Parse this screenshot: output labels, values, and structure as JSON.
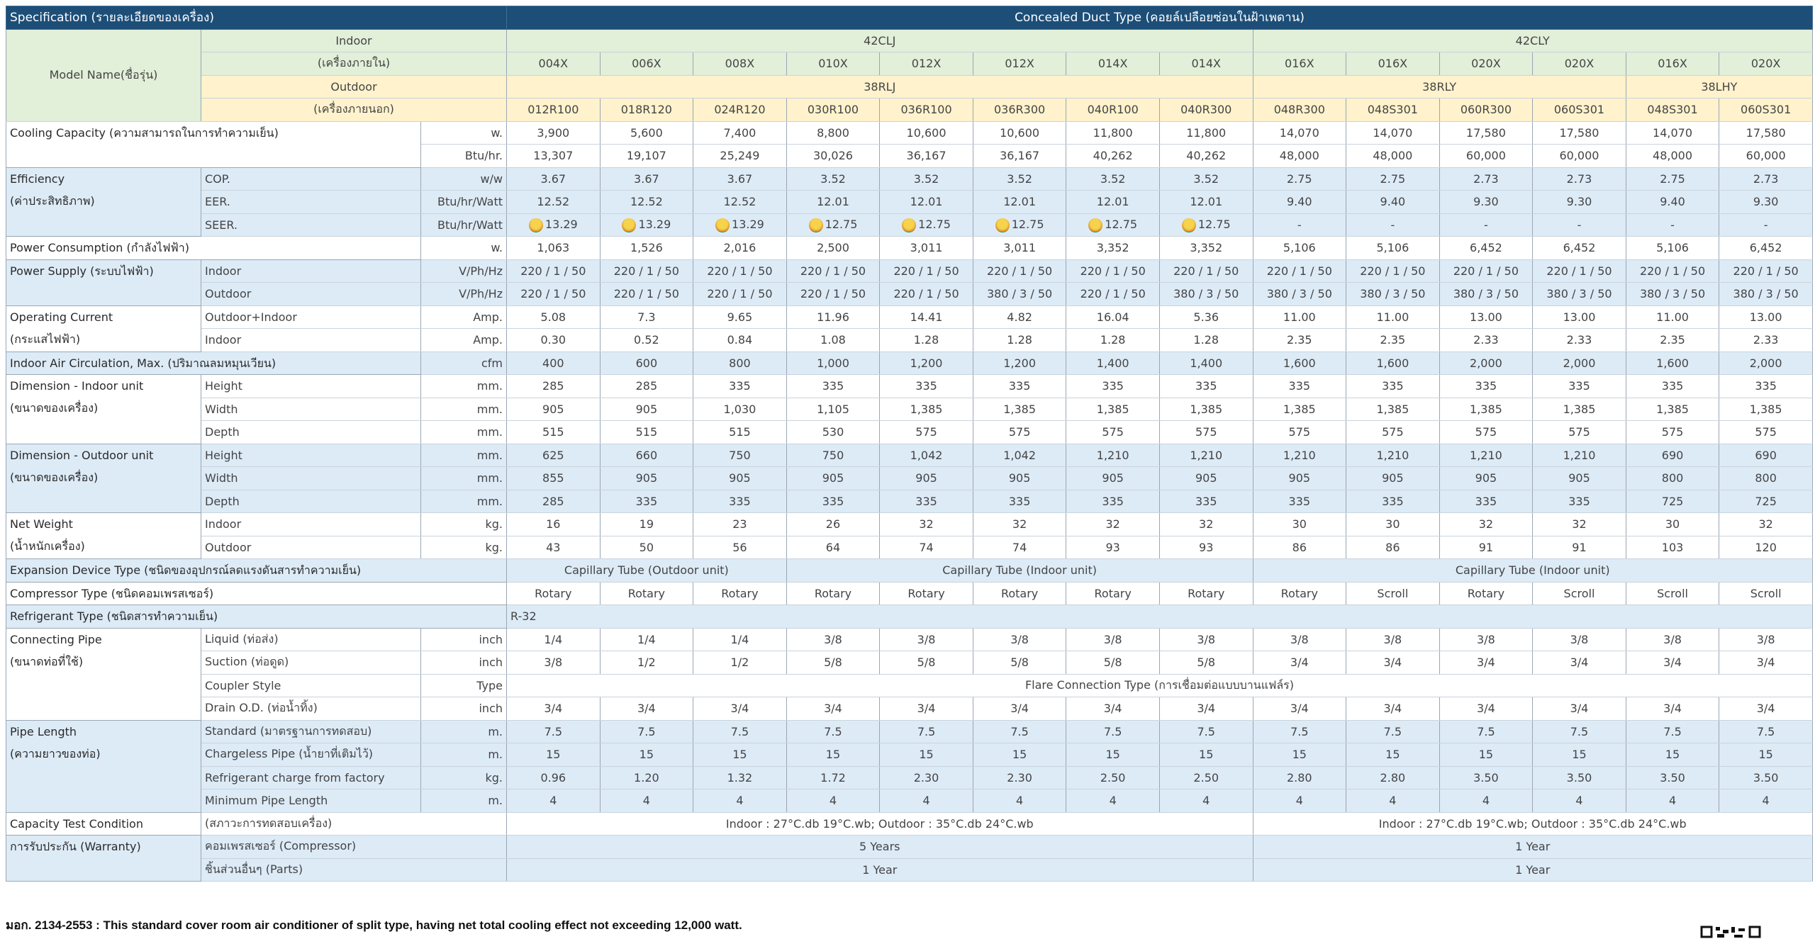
{
  "header": {
    "title": "Specification (รายละเอียดของเครื่อง)",
    "type_title": "Concealed Duct Type (คอยล์เปลือยซ่อนในฝ้าเพดาน)",
    "model_name": "Model Name(ชื่อรุ่น)",
    "indoor": "Indoor",
    "indoor_th": "(เครื่องภายใน)",
    "outdoor": "Outdoor",
    "outdoor_th": "(เครื่องภายนอก)",
    "indoor_series": [
      "42CLJ",
      "42CLY"
    ],
    "indoor_models": [
      "004X",
      "006X",
      "008X",
      "010X",
      "012X",
      "012X",
      "014X",
      "014X",
      "016X",
      "016X",
      "020X",
      "020X",
      "016X",
      "020X"
    ],
    "outdoor_series": [
      "38RLJ",
      "38RLY",
      "38LHY"
    ],
    "outdoor_models": [
      "012R100",
      "018R120",
      "024R120",
      "030R100",
      "036R100",
      "036R300",
      "040R100",
      "040R300",
      "048R300",
      "048S301",
      "060R300",
      "060S301",
      "048S301",
      "060S301"
    ]
  },
  "specs": [
    {
      "group": [
        "Cooling Capacity (ความสามารถในการทำความเย็น)"
      ],
      "rows": [
        {
          "unit": "w.",
          "values": [
            "3,900",
            "5,600",
            "7,400",
            "8,800",
            "10,600",
            "10,600",
            "11,800",
            "11,800",
            "14,070",
            "14,070",
            "17,580",
            "17,580",
            "14,070",
            "17,580"
          ]
        },
        {
          "unit": "Btu/hr.",
          "values": [
            "13,307",
            "19,107",
            "25,249",
            "30,026",
            "36,167",
            "36,167",
            "40,262",
            "40,262",
            "48,000",
            "48,000",
            "60,000",
            "60,000",
            "48,000",
            "60,000"
          ]
        }
      ]
    },
    {
      "group": [
        "Efficiency",
        "(ค่าประสิทธิภาพ)"
      ],
      "rows": [
        {
          "label": "COP.",
          "unit": "w/w",
          "values": [
            "3.67",
            "3.67",
            "3.67",
            "3.52",
            "3.52",
            "3.52",
            "3.52",
            "3.52",
            "2.75",
            "2.75",
            "2.73",
            "2.73",
            "2.75",
            "2.73"
          ]
        },
        {
          "label": "EER.",
          "unit": "Btu/hr/Watt",
          "values": [
            "12.52",
            "12.52",
            "12.52",
            "12.01",
            "12.01",
            "12.01",
            "12.01",
            "12.01",
            "9.40",
            "9.40",
            "9.30",
            "9.30",
            "9.40",
            "9.30"
          ]
        },
        {
          "label": "SEER.",
          "unit": "Btu/hr/Watt",
          "values": [
            "13.29",
            "13.29",
            "13.29",
            "12.75",
            "12.75",
            "12.75",
            "12.75",
            "12.75",
            "-",
            "-",
            "-",
            "-",
            "-",
            "-"
          ]
        }
      ]
    },
    {
      "group": [
        "Power Consumption (กำลังไฟฟ้า)"
      ],
      "rows": [
        {
          "unit": "w.",
          "values": [
            "1,063",
            "1,526",
            "2,016",
            "2,500",
            "3,011",
            "3,011",
            "3,352",
            "3,352",
            "5,106",
            "5,106",
            "6,452",
            "6,452",
            "5,106",
            "6,452"
          ]
        }
      ]
    },
    {
      "group": [
        "Power Supply (ระบบไฟฟ้า)"
      ],
      "rows": [
        {
          "label": "Indoor",
          "unit": "V/Ph/Hz",
          "values": [
            "220 / 1 / 50",
            "220 / 1 / 50",
            "220 / 1 / 50",
            "220 / 1 / 50",
            "220 / 1 / 50",
            "220 / 1 / 50",
            "220 / 1 / 50",
            "220 / 1 / 50",
            "220 / 1 / 50",
            "220 / 1 / 50",
            "220 / 1 / 50",
            "220 / 1 / 50",
            "220 / 1 / 50",
            "220 / 1 / 50"
          ]
        },
        {
          "label": "Outdoor",
          "unit": "V/Ph/Hz",
          "values": [
            "220 / 1 / 50",
            "220 / 1 / 50",
            "220 / 1 / 50",
            "220 / 1 / 50",
            "220 / 1 / 50",
            "380  / 3 / 50",
            "220 / 1 / 50",
            "380  / 3 / 50",
            "380 / 3 / 50",
            "380 / 3 / 50",
            "380 / 3 / 50",
            "380 / 3 / 50",
            "380 / 3 / 50",
            "380 / 3 / 50"
          ]
        }
      ]
    },
    {
      "group": [
        "Operating Current",
        "(กระแสไฟฟ้า)"
      ],
      "rows": [
        {
          "label": "Outdoor+Indoor",
          "unit": "Amp.",
          "values": [
            "5.08",
            "7.3",
            "9.65",
            "11.96",
            "14.41",
            "4.82",
            "16.04",
            "5.36",
            "11.00",
            "11.00",
            "13.00",
            "13.00",
            "11.00",
            "13.00"
          ]
        },
        {
          "label": "Indoor",
          "unit": "Amp.",
          "values": [
            "0.30",
            "0.52",
            "0.84",
            "1.08",
            "1.28",
            "1.28",
            "1.28",
            "1.28",
            "2.35",
            "2.35",
            "2.33",
            "2.33",
            "2.35",
            "2.33"
          ]
        }
      ]
    },
    {
      "group": [
        "Indoor Air Circulation, Max. (ปริมาณลมหมุนเวียน)"
      ],
      "rows": [
        {
          "unit": "cfm",
          "values": [
            "400",
            "600",
            "800",
            "1,000",
            "1,200",
            "1,200",
            "1,400",
            "1,400",
            "1,600",
            "1,600",
            "2,000",
            "2,000",
            "1,600",
            "2,000"
          ]
        }
      ]
    },
    {
      "group": [
        "Dimension - Indoor unit",
        "(ขนาดของเครื่อง)"
      ],
      "rows": [
        {
          "label": "Height",
          "unit": "mm.",
          "values": [
            "285",
            "285",
            "335",
            "335",
            "335",
            "335",
            "335",
            "335",
            "335",
            "335",
            "335",
            "335",
            "335",
            "335"
          ]
        },
        {
          "label": "Width",
          "unit": "mm.",
          "values": [
            "905",
            "905",
            "1,030",
            "1,105",
            "1,385",
            "1,385",
            "1,385",
            "1,385",
            "1,385",
            "1,385",
            "1,385",
            "1,385",
            "1,385",
            "1,385"
          ]
        },
        {
          "label": "Depth",
          "unit": "mm.",
          "values": [
            "515",
            "515",
            "515",
            "530",
            "575",
            "575",
            "575",
            "575",
            "575",
            "575",
            "575",
            "575",
            "575",
            "575"
          ]
        }
      ]
    },
    {
      "group": [
        "Dimension - Outdoor unit",
        "(ขนาดของเครื่อง)"
      ],
      "rows": [
        {
          "label": "Height",
          "unit": "mm.",
          "values": [
            "625",
            "660",
            "750",
            "750",
            "1,042",
            "1,042",
            "1,210",
            "1,210",
            "1,210",
            "1,210",
            "1,210",
            "1,210",
            "690",
            "690"
          ]
        },
        {
          "label": "Width",
          "unit": "mm.",
          "values": [
            "855",
            "905",
            "905",
            "905",
            "905",
            "905",
            "905",
            "905",
            "905",
            "905",
            "905",
            "905",
            "800",
            "800"
          ]
        },
        {
          "label": "Depth",
          "unit": "mm.",
          "values": [
            "285",
            "335",
            "335",
            "335",
            "335",
            "335",
            "335",
            "335",
            "335",
            "335",
            "335",
            "335",
            "725",
            "725"
          ]
        }
      ]
    },
    {
      "group": [
        "Net Weight",
        "(น้ำหนักเครื่อง)"
      ],
      "rows": [
        {
          "label": "Indoor",
          "unit": "kg.",
          "values": [
            "16",
            "19",
            "23",
            "26",
            "32",
            "32",
            "32",
            "32",
            "30",
            "30",
            "32",
            "32",
            "30",
            "32"
          ]
        },
        {
          "label": "Outdoor",
          "unit": "kg.",
          "values": [
            "43",
            "50",
            "56",
            "64",
            "74",
            "74",
            "93",
            "93",
            "86",
            "86",
            "91",
            "91",
            "103",
            "120"
          ]
        }
      ]
    },
    {
      "group": [
        "Expansion Device Type (ชนิดของอุปกรณ์ลดแรงดันสารทำความเย็น)"
      ],
      "rows": [
        {
          "values": [
            "Capillary Tube (Outdoor unit)",
            "Capillary Tube (Indoor unit)",
            "Capillary Tube (Indoor unit)"
          ]
        }
      ]
    },
    {
      "group": [
        "Compressor Type (ชนิดคอมเพรสเซอร์)"
      ],
      "rows": [
        {
          "values": [
            "Rotary",
            "Rotary",
            "Rotary",
            "Rotary",
            "Rotary",
            "Rotary",
            "Rotary",
            "Rotary",
            "Rotary",
            "Scroll",
            "Rotary",
            "Scroll",
            "Scroll",
            "Scroll"
          ]
        }
      ]
    },
    {
      "group": [
        "Refrigerant Type (ชนิดสารทำความเย็น)"
      ],
      "rows": [
        {
          "values": [
            "R-32"
          ]
        }
      ]
    },
    {
      "group": [
        "Connecting Pipe",
        "(ขนาดท่อที่ใช้)"
      ],
      "rows": [
        {
          "label": "Liquid (ท่อส่ง)",
          "unit": "inch",
          "values": [
            "1/4",
            "1/4",
            "1/4",
            "3/8",
            "3/8",
            "3/8",
            "3/8",
            "3/8",
            "3/8",
            "3/8",
            "3/8",
            "3/8",
            "3/8",
            "3/8"
          ]
        },
        {
          "label": "Suction (ท่อดูด)",
          "unit": "inch",
          "values": [
            "3/8",
            "1/2",
            "1/2",
            "5/8",
            "5/8",
            "5/8",
            "5/8",
            "5/8",
            "3/4",
            "3/4",
            "3/4",
            "3/4",
            "3/4",
            "3/4"
          ]
        },
        {
          "label": "Coupler Style",
          "unit": "Type",
          "values": [
            "Flare Connection Type (การเชื่อมต่อแบบบานแฟล์ร)"
          ]
        },
        {
          "label": "Drain O.D. (ท่อน้ำทิ้ง)",
          "unit": "inch",
          "values": [
            "3/4",
            "3/4",
            "3/4",
            "3/4",
            "3/4",
            "3/4",
            "3/4",
            "3/4",
            "3/4",
            "3/4",
            "3/4",
            "3/4",
            "3/4",
            "3/4"
          ]
        }
      ]
    },
    {
      "group": [
        "Pipe Length",
        "(ความยาวของท่อ)"
      ],
      "rows": [
        {
          "label": "Standard (มาตรฐานการทดสอบ)",
          "unit": "m.",
          "values": [
            "7.5",
            "7.5",
            "7.5",
            "7.5",
            "7.5",
            "7.5",
            "7.5",
            "7.5",
            "7.5",
            "7.5",
            "7.5",
            "7.5",
            "7.5",
            "7.5"
          ]
        },
        {
          "label": "Chargeless Pipe (น้ำยาที่เติมไว้)",
          "unit": "m.",
          "values": [
            "15",
            "15",
            "15",
            "15",
            "15",
            "15",
            "15",
            "15",
            "15",
            "15",
            "15",
            "15",
            "15",
            "15"
          ]
        },
        {
          "label": "Refrigerant charge from factory",
          "unit": "kg.",
          "values": [
            "0.96",
            "1.20",
            "1.32",
            "1.72",
            "2.30",
            "2.30",
            "2.50",
            "2.50",
            "2.80",
            "2.80",
            "3.50",
            "3.50",
            "3.50",
            "3.50"
          ]
        },
        {
          "label": "Minimum Pipe Length",
          "unit": "m.",
          "values": [
            "4",
            "4",
            "4",
            "4",
            "4",
            "4",
            "4",
            "4",
            "4",
            "4",
            "4",
            "4",
            "4",
            "4"
          ]
        }
      ]
    },
    {
      "group": [
        "Capacity Test Condition"
      ],
      "rows": [
        {
          "label": "(สภาวะการทดสอบเครื่อง)",
          "values": [
            "Indoor : 27°C.db 19°C.wb; Outdoor : 35°C.db 24°C.wb",
            "Indoor : 27°C.db 19°C.wb; Outdoor : 35°C.db 24°C.wb"
          ]
        }
      ]
    },
    {
      "group": [
        "การรับประกัน (Warranty)"
      ],
      "rows": [
        {
          "label": "คอมเพรสเซอร์ (Compressor)",
          "values": [
            "5 Years",
            "1 Year"
          ]
        },
        {
          "label": "ชิ้นส่วนอื่นๆ (Parts)",
          "values": [
            "1 Year",
            "1 Year"
          ]
        }
      ]
    }
  ],
  "footnote": "มอก. 2134-2553 : This standard cover room air conditioner of split type, having net total cooling effect not exceeding 12,000 watt."
}
